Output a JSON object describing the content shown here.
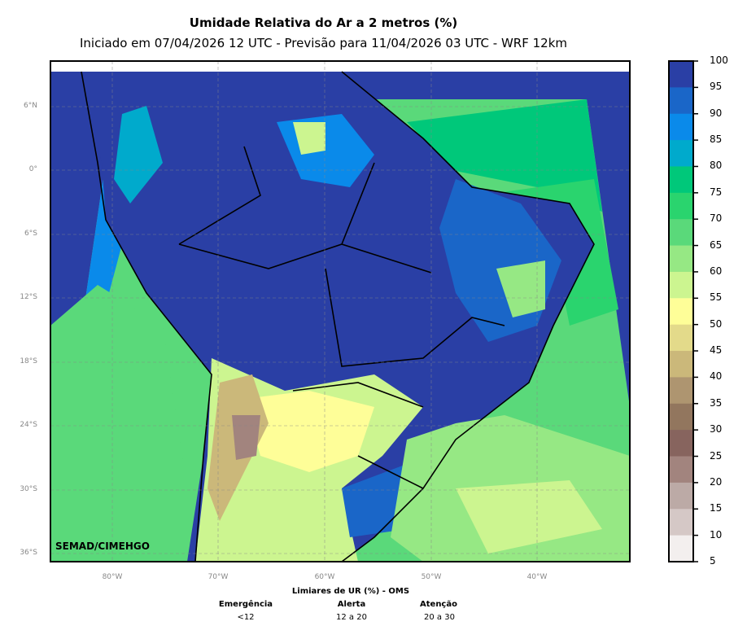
{
  "title": "Umidade Relativa do Ar a 2 metros (%)",
  "subtitle": "Iniciado em 07/04/2026 12 UTC - Previsão para 11/04/2026 03 UTC - WRF 12km",
  "credit": "SEMAD/CIMEHGO",
  "lat_labels": [
    "6°N",
    "0°",
    "6°S",
    "12°S",
    "18°S",
    "24°S",
    "30°S",
    "36°S"
  ],
  "lon_labels": [
    "80°W",
    "70°W",
    "60°W",
    "50°W",
    "40°W"
  ],
  "colorbar": {
    "ticks": [
      "100",
      "95",
      "90",
      "85",
      "80",
      "75",
      "70",
      "65",
      "60",
      "55",
      "50",
      "45",
      "40",
      "35",
      "30",
      "25",
      "20",
      "15",
      "10",
      "5"
    ],
    "colors": [
      "#2a3fa5",
      "#1a66c8",
      "#0a8aea",
      "#00aacc",
      "#00c87a",
      "#2ad46e",
      "#5ad97a",
      "#96e884",
      "#ccf590",
      "#fefe98",
      "#e3da8a",
      "#cbb87a",
      "#ae9570",
      "#92765e",
      "#87645e",
      "#a2847e",
      "#bcaaa6",
      "#d5c8c6",
      "#f3efee"
    ]
  },
  "legend": {
    "title": "Limiares de UR (%) - OMS",
    "items": [
      {
        "label": "Emergência",
        "value": "<12"
      },
      {
        "label": "Alerta",
        "value": "12 a 20"
      },
      {
        "label": "Atenção",
        "value": "20 a 30"
      }
    ]
  }
}
